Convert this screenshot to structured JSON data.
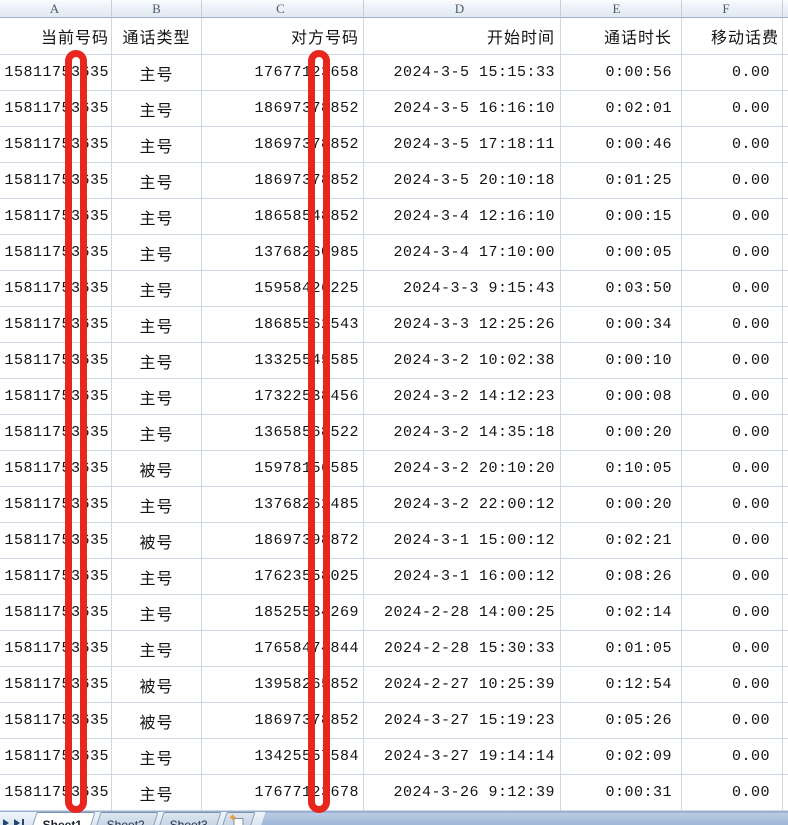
{
  "colors": {
    "redaction": "#e8261d",
    "grid_line": "#d0d7e5",
    "tab_bar_blue": "#8baacf"
  },
  "column_headers": [
    "A",
    "B",
    "C",
    "D",
    "E",
    "F"
  ],
  "field_headers": {
    "current_number": "当前号码",
    "call_type": "通话类型",
    "other_number": "对方号码",
    "start_time": "开始时间",
    "duration": "通话时长",
    "mobile_fee": "移动话费"
  },
  "rows": [
    {
      "a": "15811753635",
      "b": "主号",
      "c": "17677123658",
      "d": "2024-3-5 15:15:33",
      "e": "0:00:56",
      "f": "0.00"
    },
    {
      "a": "15811753635",
      "b": "主号",
      "c": "18697378852",
      "d": "2024-3-5 16:16:10",
      "e": "0:02:01",
      "f": "0.00"
    },
    {
      "a": "15811753635",
      "b": "主号",
      "c": "18697378852",
      "d": "2024-3-5 17:18:11",
      "e": "0:00:46",
      "f": "0.00"
    },
    {
      "a": "15811753635",
      "b": "主号",
      "c": "18697378852",
      "d": "2024-3-5 20:10:18",
      "e": "0:01:25",
      "f": "0.00"
    },
    {
      "a": "15811753635",
      "b": "主号",
      "c": "18658548852",
      "d": "2024-3-4 12:16:10",
      "e": "0:00:15",
      "f": "0.00"
    },
    {
      "a": "15811753635",
      "b": "主号",
      "c": "13768260985",
      "d": "2024-3-4 17:10:00",
      "e": "0:00:05",
      "f": "0.00"
    },
    {
      "a": "15811753635",
      "b": "主号",
      "c": "15958426225",
      "d": "2024-3-3 9:15:43",
      "e": "0:03:50",
      "f": "0.00"
    },
    {
      "a": "15811753635",
      "b": "主号",
      "c": "18685562543",
      "d": "2024-3-3 12:25:26",
      "e": "0:00:34",
      "f": "0.00"
    },
    {
      "a": "15811753635",
      "b": "主号",
      "c": "13325545585",
      "d": "2024-3-2 10:02:38",
      "e": "0:00:10",
      "f": "0.00"
    },
    {
      "a": "15811753635",
      "b": "主号",
      "c": "17322538456",
      "d": "2024-3-2 14:12:23",
      "e": "0:00:08",
      "f": "0.00"
    },
    {
      "a": "15811753635",
      "b": "主号",
      "c": "13658568522",
      "d": "2024-3-2 14:35:18",
      "e": "0:00:20",
      "f": "0.00"
    },
    {
      "a": "15811753635",
      "b": "被号",
      "c": "15978156585",
      "d": "2024-3-2 20:10:20",
      "e": "0:10:05",
      "f": "0.00"
    },
    {
      "a": "15811753635",
      "b": "主号",
      "c": "13768262485",
      "d": "2024-3-2 22:00:12",
      "e": "0:00:20",
      "f": "0.00"
    },
    {
      "a": "15811753635",
      "b": "被号",
      "c": "18697398872",
      "d": "2024-3-1 15:00:12",
      "e": "0:02:21",
      "f": "0.00"
    },
    {
      "a": "15811753635",
      "b": "主号",
      "c": "17623558025",
      "d": "2024-3-1 16:00:12",
      "e": "0:08:26",
      "f": "0.00"
    },
    {
      "a": "15811753635",
      "b": "主号",
      "c": "18525534269",
      "d": "2024-2-28 14:00:25",
      "e": "0:02:14",
      "f": "0.00"
    },
    {
      "a": "15811753635",
      "b": "主号",
      "c": "17658474844",
      "d": "2024-2-28 15:30:33",
      "e": "0:01:05",
      "f": "0.00"
    },
    {
      "a": "15811753635",
      "b": "被号",
      "c": "13958265852",
      "d": "2024-2-27 10:25:39",
      "e": "0:12:54",
      "f": "0.00"
    },
    {
      "a": "15811753635",
      "b": "被号",
      "c": "18697378852",
      "d": "2024-3-27 15:19:23",
      "e": "0:05:26",
      "f": "0.00"
    },
    {
      "a": "15811753635",
      "b": "主号",
      "c": "13425557584",
      "d": "2024-3-27 19:14:14",
      "e": "0:02:09",
      "f": "0.00"
    },
    {
      "a": "15811753635",
      "b": "主号",
      "c": "17677123678",
      "d": "2024-3-26 9:12:39",
      "e": "0:00:31",
      "f": "0.00"
    }
  ],
  "sheet_tabs": {
    "active": "Sheet1",
    "items": [
      "Sheet1",
      "Sheet2",
      "Sheet3"
    ]
  }
}
